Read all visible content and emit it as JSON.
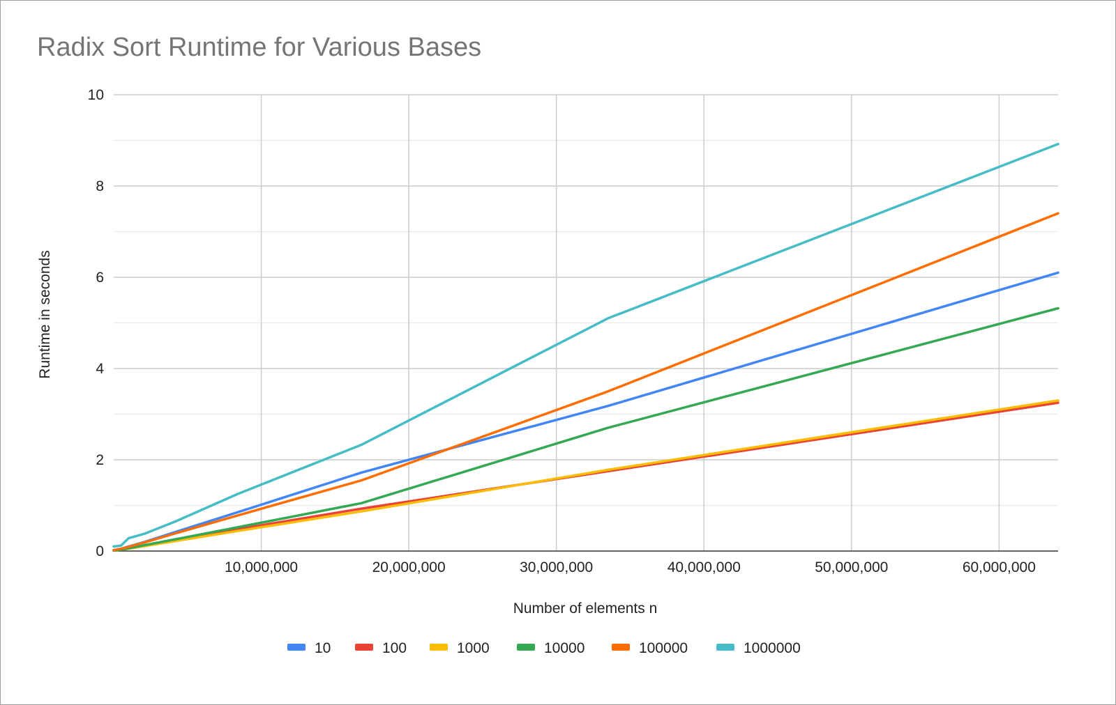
{
  "chart_data": {
    "type": "line",
    "title": "Radix Sort Runtime for Various Bases",
    "xlabel": "Number of elements n",
    "ylabel": "Runtime in seconds",
    "xlim": [
      0,
      64000000
    ],
    "ylim": [
      0,
      10
    ],
    "x_ticks": [
      10000000,
      20000000,
      30000000,
      40000000,
      50000000,
      60000000
    ],
    "x_tick_labels": [
      "10,000,000",
      "20,000,000",
      "30,000,000",
      "40,000,000",
      "50,000,000",
      "60,000,000"
    ],
    "y_ticks": [
      0,
      2,
      4,
      6,
      8,
      10
    ],
    "y_tick_labels": [
      "0",
      "2",
      "4",
      "6",
      "8",
      "10"
    ],
    "grid": true,
    "legend_position": "bottom",
    "series": [
      {
        "name": "10",
        "color": "#4285f4",
        "x": [
          0,
          500000,
          1000000,
          2100000,
          4200000,
          8400000,
          16800000,
          33500000,
          64000000
        ],
        "y": [
          0.02,
          0.05,
          0.1,
          0.2,
          0.42,
          0.85,
          1.72,
          3.18,
          6.1
        ]
      },
      {
        "name": "100",
        "color": "#ea4335",
        "x": [
          0,
          500000,
          1000000,
          2100000,
          4200000,
          8400000,
          16800000,
          33500000,
          64000000
        ],
        "y": [
          0.01,
          0.03,
          0.06,
          0.12,
          0.25,
          0.48,
          0.93,
          1.75,
          3.25
        ]
      },
      {
        "name": "1000",
        "color": "#fbbc04",
        "x": [
          0,
          500000,
          1000000,
          2100000,
          4200000,
          8400000,
          16800000,
          33500000,
          64000000
        ],
        "y": [
          0.01,
          0.03,
          0.05,
          0.11,
          0.22,
          0.44,
          0.87,
          1.78,
          3.3
        ]
      },
      {
        "name": "10000",
        "color": "#34a853",
        "x": [
          0,
          500000,
          1000000,
          2100000,
          4200000,
          8400000,
          16800000,
          33500000,
          64000000
        ],
        "y": [
          0.01,
          0.03,
          0.06,
          0.13,
          0.26,
          0.52,
          1.05,
          2.7,
          5.32
        ]
      },
      {
        "name": "100000",
        "color": "#ff6d01",
        "x": [
          0,
          500000,
          1000000,
          2100000,
          4200000,
          8400000,
          16800000,
          33500000,
          64000000
        ],
        "y": [
          0.02,
          0.05,
          0.09,
          0.19,
          0.39,
          0.78,
          1.55,
          3.5,
          7.4
        ]
      },
      {
        "name": "1000000",
        "color": "#46bdc6",
        "x": [
          0,
          500000,
          1000000,
          2100000,
          4200000,
          8400000,
          16800000,
          33500000,
          64000000
        ],
        "y": [
          0.1,
          0.12,
          0.28,
          0.38,
          0.65,
          1.25,
          2.33,
          5.1,
          8.92
        ]
      }
    ]
  }
}
